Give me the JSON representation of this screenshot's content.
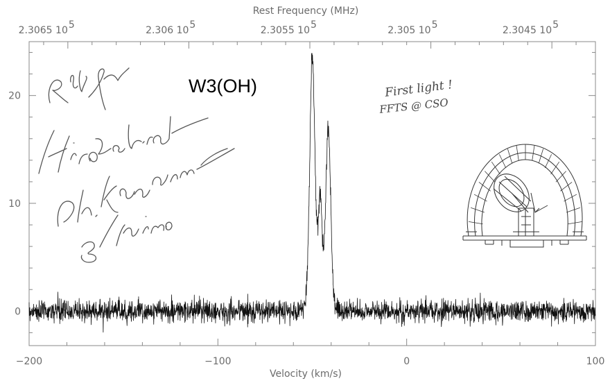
{
  "chart_data": {
    "type": "line",
    "source_label": "W3(OH)",
    "xlabel": "Velocity (km/s)",
    "top_xlabel": "Rest Frequency (MHz)",
    "ylabel": "",
    "xlim": [
      -200,
      100
    ],
    "ylim": [
      -3.2,
      25
    ],
    "x_ticks": [
      {
        "value": -200,
        "label": "−200"
      },
      {
        "value": -100,
        "label": "−100"
      },
      {
        "value": 0,
        "label": "0"
      },
      {
        "value": 100,
        "label": "100"
      }
    ],
    "y_ticks": [
      {
        "value": 0,
        "label": "0"
      },
      {
        "value": 10,
        "label": "10"
      },
      {
        "value": 20,
        "label": "20"
      }
    ],
    "top_ticks": [
      {
        "value": 230650,
        "label": "2.3065 10",
        "exp": "5"
      },
      {
        "value": 230600,
        "label": "2.306 10",
        "exp": "5"
      },
      {
        "value": 230550,
        "label": "2.3055 10",
        "exp": "5"
      },
      {
        "value": 230500,
        "label": "2.305 10",
        "exp": "5"
      },
      {
        "value": 230450,
        "label": "2.3045 10",
        "exp": "5"
      }
    ],
    "top_xlim": [
      230666,
      230432
    ],
    "annotations": [
      "First light !",
      "FFTS @ CSO"
    ],
    "series": [
      {
        "noise_rms": 0.5,
        "peaks": [
          {
            "center": -50.0,
            "amplitude": 21.0,
            "width": 1.3
          },
          {
            "center": -41.5,
            "amplitude": 15.5,
            "width": 1.3
          },
          {
            "center": -45.8,
            "amplitude": 7.8,
            "width": 0.9
          },
          {
            "center": -47.0,
            "amplitude": 3.5,
            "width": 3.8
          }
        ]
      }
    ]
  },
  "colors": {
    "line": "#111111",
    "frame": "#888888",
    "tick_text": "#6b6b6b"
  }
}
